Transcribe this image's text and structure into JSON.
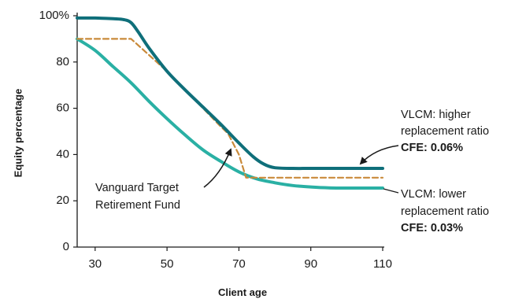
{
  "chart_data": {
    "type": "line",
    "xlabel": "Client age",
    "ylabel": "Equity percentage",
    "xlim": [
      25,
      110
    ],
    "ylim": [
      0,
      100
    ],
    "x_ticks": [
      30,
      50,
      70,
      90,
      110
    ],
    "y_ticks": [
      0,
      20,
      40,
      60,
      80,
      100
    ],
    "y_tick_labels": [
      "0",
      "20",
      "40",
      "60",
      "80",
      "100%"
    ],
    "grid": false,
    "series": [
      {
        "name": "VLCM: higher replacement ratio",
        "color": "#0f6f7a",
        "style": "solid",
        "points": [
          [
            25,
            99
          ],
          [
            30,
            99
          ],
          [
            35,
            98.7
          ],
          [
            38,
            98.3
          ],
          [
            40,
            97
          ],
          [
            42,
            93
          ],
          [
            45,
            86
          ],
          [
            50,
            76
          ],
          [
            55,
            68
          ],
          [
            60,
            60.5
          ],
          [
            65,
            53
          ],
          [
            70,
            45
          ],
          [
            74,
            39
          ],
          [
            77,
            35.8
          ],
          [
            80,
            34.3
          ],
          [
            85,
            34
          ],
          [
            90,
            34
          ],
          [
            100,
            34
          ],
          [
            110,
            34
          ]
        ]
      },
      {
        "name": "VLCM: lower replacement ratio",
        "color": "#2ab0a4",
        "style": "solid",
        "points": [
          [
            25,
            90
          ],
          [
            30,
            85
          ],
          [
            35,
            78
          ],
          [
            40,
            71
          ],
          [
            45,
            63
          ],
          [
            50,
            55.5
          ],
          [
            55,
            48.5
          ],
          [
            60,
            42
          ],
          [
            65,
            37
          ],
          [
            70,
            32.5
          ],
          [
            75,
            29.5
          ],
          [
            80,
            27.8
          ],
          [
            85,
            26.6
          ],
          [
            90,
            26
          ],
          [
            95,
            25.6
          ],
          [
            100,
            25.5
          ],
          [
            110,
            25.5
          ]
        ]
      },
      {
        "name": "Vanguard Target Retirement Fund",
        "color": "#c98a3a",
        "style": "dashed",
        "points": [
          [
            25,
            90
          ],
          [
            40,
            90
          ],
          [
            45,
            83
          ],
          [
            50,
            76
          ],
          [
            55,
            68
          ],
          [
            60,
            60
          ],
          [
            65,
            52
          ],
          [
            67,
            49
          ],
          [
            70,
            40
          ],
          [
            72,
            30
          ],
          [
            110,
            30
          ]
        ]
      }
    ],
    "annotations": [
      {
        "lines": [
          "VLCM: higher",
          "replacement ratio"
        ],
        "bold": "CFE: 0.06%"
      },
      {
        "lines": [
          "VLCM: lower",
          "replacement ratio"
        ],
        "bold": "CFE: 0.03%"
      },
      {
        "lines": [
          "Vanguard Target",
          "Retirement Fund"
        ]
      }
    ]
  }
}
